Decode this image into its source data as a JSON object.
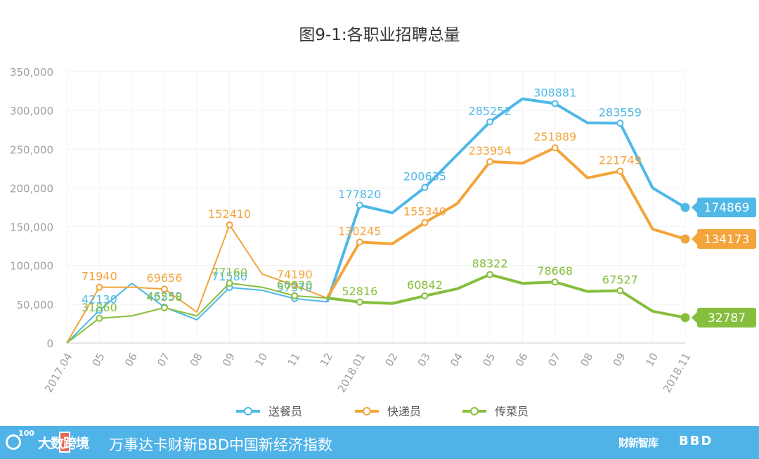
{
  "colors": {
    "series_blue": "#4fb8e6",
    "series_orange": "#f3a43a",
    "series_green": "#86bf3d",
    "footer_bg": "#4fb3e8"
  },
  "chart_data": {
    "type": "line",
    "title": "图9-1:各职业招聘总量",
    "xlabel": "",
    "ylabel": "",
    "ylim": [
      0,
      350000
    ],
    "y_ticks": [
      "350,000",
      "300,000",
      "250,000",
      "200,000",
      "150,000",
      "100,000",
      "50,000",
      "0"
    ],
    "y_tick_values": [
      350000,
      300000,
      250000,
      200000,
      150000,
      100000,
      50000,
      0
    ],
    "categories": [
      "2017.04",
      "05",
      "06",
      "07",
      "08",
      "09",
      "10",
      "11",
      "12",
      "2018.01",
      "02",
      "03",
      "04",
      "05",
      "06",
      "07",
      "08",
      "09",
      "10",
      "2018.11"
    ],
    "legend_position": "bottom",
    "series": [
      {
        "name": "送餐员",
        "color_key": "series_blue",
        "values": [
          0,
          42130,
          77000,
          46259,
          30000,
          71580,
          68000,
          57370,
          53000,
          177820,
          168000,
          200635,
          243000,
          285252,
          315000,
          308881,
          284000,
          283559,
          200000,
          174869
        ],
        "markers": [
          1,
          3,
          5,
          7,
          9,
          11,
          13,
          15,
          17,
          19
        ],
        "labels": [
          {
            "index": 1,
            "text": "42130"
          },
          {
            "index": 3,
            "text": "46259"
          },
          {
            "index": 5,
            "text": "71580"
          },
          {
            "index": 7,
            "text": "57370"
          },
          {
            "index": 9,
            "text": "177820"
          },
          {
            "index": 11,
            "text": "200635"
          },
          {
            "index": 13,
            "text": "285252"
          },
          {
            "index": 15,
            "text": "308881"
          },
          {
            "index": 17,
            "text": "283559"
          }
        ],
        "end_value": "174869"
      },
      {
        "name": "快递员",
        "color_key": "series_orange",
        "values": [
          0,
          71940,
          72000,
          69656,
          40000,
          152410,
          89000,
          74190,
          58000,
          130245,
          128000,
          155340,
          180000,
          233954,
          232000,
          251889,
          213000,
          221749,
          147000,
          134173
        ],
        "markers": [
          1,
          3,
          5,
          7,
          9,
          11,
          13,
          15,
          17,
          19
        ],
        "labels": [
          {
            "index": 1,
            "text": "71940"
          },
          {
            "index": 3,
            "text": "69656"
          },
          {
            "index": 5,
            "text": "152410"
          },
          {
            "index": 7,
            "text": "74190"
          },
          {
            "index": 9,
            "text": "130245"
          },
          {
            "index": 11,
            "text": "155340"
          },
          {
            "index": 13,
            "text": "233954"
          },
          {
            "index": 15,
            "text": "251889"
          },
          {
            "index": 17,
            "text": "221749"
          }
        ],
        "end_value": "134173"
      },
      {
        "name": "传菜员",
        "color_key": "series_green",
        "values": [
          0,
          31860,
          35000,
          45558,
          35000,
          77160,
          72000,
          60920,
          58000,
          52816,
          51000,
          60842,
          70000,
          88322,
          77000,
          78668,
          66500,
          67527,
          41000,
          32787
        ],
        "markers": [
          1,
          3,
          5,
          7,
          9,
          11,
          13,
          15,
          17,
          19
        ],
        "labels": [
          {
            "index": 1,
            "text": "31860"
          },
          {
            "index": 3,
            "text": "45558"
          },
          {
            "index": 5,
            "text": "77160"
          },
          {
            "index": 7,
            "text": "60920"
          },
          {
            "index": 9,
            "text": "52816"
          },
          {
            "index": 11,
            "text": "60842"
          },
          {
            "index": 13,
            "text": "88322"
          },
          {
            "index": 15,
            "text": "78668"
          },
          {
            "index": 17,
            "text": "67527"
          }
        ],
        "end_value": "32787"
      }
    ]
  },
  "footer": {
    "logo_number": "100",
    "brand": "大数跨境",
    "index_name": "万事达卡财新BBD中国新经济指数",
    "caixin_logo": "财新智库",
    "bbd_logo": "BBD"
  }
}
